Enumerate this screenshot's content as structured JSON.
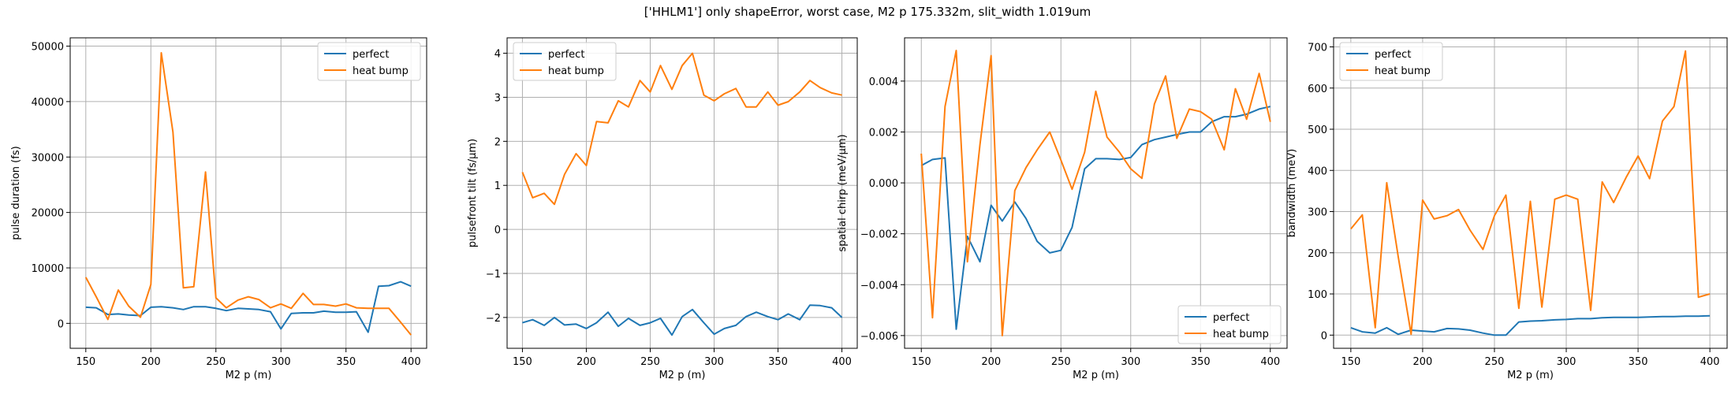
{
  "figure": {
    "title": "['HHLM1'] only shapeError, worst case, M2 p 175.332m, slit_width 1.019um"
  },
  "colors": {
    "perfect": "#1f77b4",
    "heat_bump": "#ff7f0e",
    "grid": "#b0b0b0"
  },
  "chart_data": [
    {
      "type": "line",
      "xlabel": "M2 p (m)",
      "ylabel": "pulse duration (fs)",
      "xlim": [
        138,
        412
      ],
      "ylim": [
        -4500,
        51500
      ],
      "xticks": [
        150,
        200,
        250,
        300,
        350,
        400
      ],
      "yticks": [
        0,
        10000,
        20000,
        30000,
        40000,
        50000
      ],
      "grid": true,
      "legend_loc": "upper-right",
      "x": [
        150,
        158,
        167,
        175,
        183,
        192,
        200,
        208,
        217,
        225,
        233,
        242,
        250,
        258,
        267,
        275,
        283,
        292,
        300,
        308,
        317,
        325,
        333,
        342,
        350,
        358,
        367,
        375,
        383,
        392,
        400
      ],
      "series": [
        {
          "name": "perfect",
          "values": [
            2900,
            2800,
            1600,
            1700,
            1500,
            1400,
            2900,
            3000,
            2800,
            2500,
            3000,
            3000,
            2700,
            2300,
            2700,
            2600,
            2500,
            2100,
            -1000,
            1800,
            1900,
            1900,
            2200,
            2000,
            2000,
            2100,
            -1600,
            6700,
            6800,
            7500,
            6700
          ]
        },
        {
          "name": "heat bump",
          "values": [
            8300,
            4800,
            700,
            6000,
            3100,
            1100,
            7000,
            48800,
            34500,
            6400,
            6600,
            27300,
            4600,
            2800,
            4200,
            4800,
            4300,
            2800,
            3500,
            2700,
            5400,
            3400,
            3400,
            3100,
            3500,
            2800,
            2700,
            2700,
            2700,
            200,
            -2100
          ]
        }
      ]
    },
    {
      "type": "line",
      "xlabel": "M2 p (m)",
      "ylabel": "pulsefront tilt (fs/μm)",
      "xlim": [
        138,
        412
      ],
      "ylim": [
        -2.7,
        4.35
      ],
      "xticks": [
        150,
        200,
        250,
        300,
        350,
        400
      ],
      "yticks": [
        -2,
        -1,
        0,
        1,
        2,
        3,
        4
      ],
      "grid": true,
      "legend_loc": "upper-left",
      "x": [
        150,
        158,
        167,
        175,
        183,
        192,
        200,
        208,
        217,
        225,
        233,
        242,
        250,
        258,
        267,
        275,
        283,
        292,
        300,
        308,
        317,
        325,
        333,
        342,
        350,
        358,
        367,
        375,
        383,
        392,
        400
      ],
      "series": [
        {
          "name": "perfect",
          "values": [
            -2.12,
            -2.05,
            -2.18,
            -2.0,
            -2.17,
            -2.15,
            -2.25,
            -2.12,
            -1.88,
            -2.2,
            -2.02,
            -2.18,
            -2.12,
            -2.02,
            -2.4,
            -1.98,
            -1.82,
            -2.12,
            -2.38,
            -2.25,
            -2.18,
            -1.98,
            -1.88,
            -1.98,
            -2.05,
            -1.92,
            -2.05,
            -1.72,
            -1.73,
            -1.78,
            -2.0
          ]
        },
        {
          "name": "heat bump",
          "values": [
            1.3,
            0.72,
            0.82,
            0.57,
            1.25,
            1.72,
            1.45,
            2.45,
            2.42,
            2.92,
            2.78,
            3.38,
            3.12,
            3.72,
            3.18,
            3.72,
            4.0,
            3.05,
            2.92,
            3.08,
            3.2,
            2.78,
            2.78,
            3.12,
            2.82,
            2.9,
            3.12,
            3.38,
            3.22,
            3.1,
            3.05
          ]
        }
      ]
    },
    {
      "type": "line",
      "xlabel": "M2 p (m)",
      "ylabel": "spatial chirp (meV/μm)",
      "xlim": [
        138,
        412
      ],
      "ylim": [
        -0.0065,
        0.0057
      ],
      "xticks": [
        150,
        200,
        250,
        300,
        350,
        400
      ],
      "yticks": [
        -0.006,
        -0.004,
        -0.002,
        0.0,
        0.002,
        0.004
      ],
      "ytick_labels": [
        "−0.006",
        "−0.004",
        "−0.002",
        "0.000",
        "0.002",
        "0.004"
      ],
      "grid": true,
      "legend_loc": "lower-right",
      "x": [
        150,
        158,
        167,
        175,
        183,
        192,
        200,
        208,
        217,
        225,
        233,
        242,
        250,
        258,
        267,
        275,
        283,
        292,
        300,
        308,
        317,
        325,
        333,
        342,
        350,
        358,
        367,
        375,
        383,
        392,
        400
      ],
      "series": [
        {
          "name": "perfect",
          "values": [
            0.00068,
            0.00092,
            0.00098,
            -0.00575,
            -0.0021,
            -0.0031,
            -0.00088,
            -0.0015,
            -0.00075,
            -0.0014,
            -0.0023,
            -0.00275,
            -0.00265,
            -0.00175,
            0.00055,
            0.00095,
            0.00095,
            0.00092,
            0.001,
            0.0015,
            0.0017,
            0.0018,
            0.0019,
            0.002,
            0.002,
            0.0024,
            0.0026,
            0.0026,
            0.0027,
            0.0029,
            0.003
          ]
        },
        {
          "name": "heat bump",
          "values": [
            0.00115,
            -0.0053,
            0.003,
            0.0052,
            -0.0031,
            0.0015,
            0.005,
            -0.006,
            -0.0003,
            0.0006,
            0.0013,
            0.002,
            0.0009,
            -0.00025,
            0.0012,
            0.0036,
            0.0018,
            0.0012,
            0.00055,
            0.00018,
            0.0031,
            0.0042,
            0.00175,
            0.0029,
            0.0028,
            0.0025,
            0.0013,
            0.0037,
            0.0025,
            0.0043,
            0.0024
          ]
        }
      ]
    },
    {
      "type": "line",
      "xlabel": "M2 p (m)",
      "ylabel": "bandwidth (meV)",
      "xlim": [
        138,
        412
      ],
      "ylim": [
        -32,
        722
      ],
      "xticks": [
        150,
        200,
        250,
        300,
        350,
        400
      ],
      "yticks": [
        0,
        100,
        200,
        300,
        400,
        500,
        600,
        700
      ],
      "grid": true,
      "legend_loc": "upper-left",
      "x": [
        150,
        158,
        167,
        175,
        183,
        192,
        200,
        208,
        217,
        225,
        233,
        242,
        250,
        258,
        267,
        275,
        283,
        292,
        300,
        308,
        317,
        325,
        333,
        342,
        350,
        358,
        367,
        375,
        383,
        392,
        400
      ],
      "series": [
        {
          "name": "perfect",
          "values": [
            18,
            8,
            5,
            18,
            2,
            12,
            10,
            8,
            16,
            15,
            12,
            5,
            0,
            0,
            32,
            34,
            35,
            37,
            38,
            40,
            40,
            42,
            43,
            43,
            43,
            44,
            45,
            45,
            46,
            46,
            47
          ]
        },
        {
          "name": "heat bump",
          "values": [
            258,
            292,
            18,
            370,
            190,
            2,
            328,
            282,
            290,
            305,
            255,
            208,
            290,
            340,
            65,
            325,
            68,
            330,
            340,
            330,
            60,
            372,
            322,
            385,
            435,
            380,
            520,
            555,
            690,
            92,
            100
          ]
        }
      ]
    }
  ]
}
